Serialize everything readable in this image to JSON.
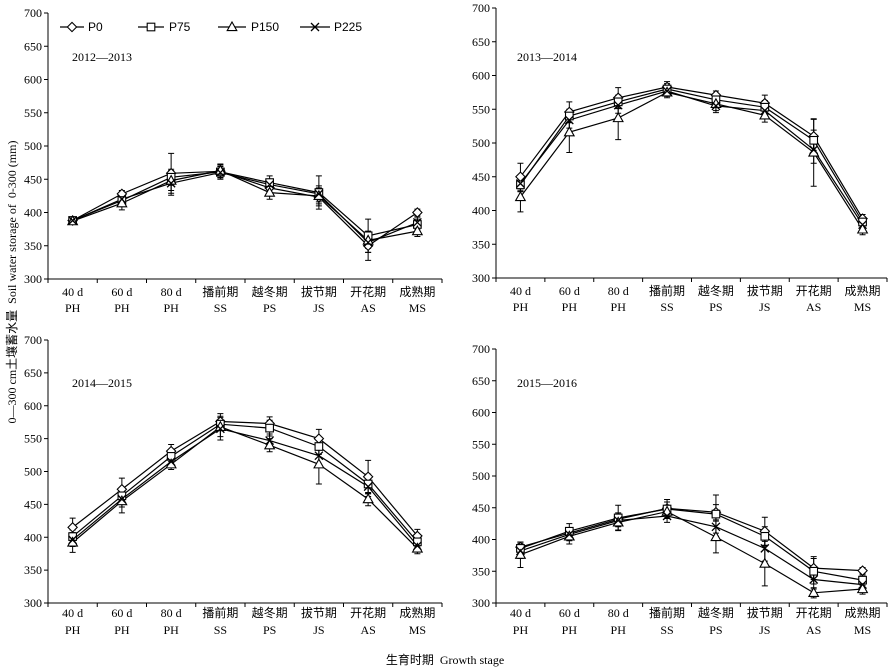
{
  "figure": {
    "ylabel": "0—300 cm土壤蓄水量  Soil water storage of  0-300 (mm)",
    "xlabel": "生育时期  Growth stage"
  },
  "chart_data": [
    {
      "type": "line",
      "title": "2012—2013",
      "ylim": [
        300,
        700
      ],
      "yticks": [
        300,
        350,
        400,
        450,
        500,
        550,
        600,
        650,
        700
      ],
      "grid": false,
      "legend_position": "top",
      "categories": [
        {
          "stage": "40 d",
          "code": "PH"
        },
        {
          "stage": "60 d",
          "code": "PH"
        },
        {
          "stage": "80 d",
          "code": "PH"
        },
        {
          "stage": "播前期",
          "code": "SS"
        },
        {
          "stage": "越冬期",
          "code": "PS"
        },
        {
          "stage": "拔节期",
          "code": "JS"
        },
        {
          "stage": "开花期",
          "code": "AS"
        },
        {
          "stage": "成熟期",
          "code": "MS"
        }
      ],
      "series": [
        {
          "name": "P0",
          "marker": "diamond",
          "values": [
            388,
            428,
            459,
            462,
            437,
            423,
            350,
            400
          ],
          "err": [
            3,
            5,
            30,
            10,
            12,
            13,
            22,
            5
          ]
        },
        {
          "name": "P75",
          "marker": "square",
          "values": [
            388,
            418,
            453,
            461,
            445,
            430,
            365,
            382
          ],
          "err": [
            3,
            8,
            12,
            8,
            10,
            25,
            25,
            8
          ]
        },
        {
          "name": "P150",
          "marker": "triangle",
          "values": [
            387,
            414,
            448,
            463,
            430,
            425,
            358,
            372
          ],
          "err": [
            3,
            10,
            15,
            10,
            10,
            12,
            12,
            8
          ]
        },
        {
          "name": "P225",
          "marker": "x",
          "values": [
            388,
            420,
            444,
            460,
            442,
            428,
            355,
            385
          ],
          "err": [
            3,
            8,
            18,
            10,
            8,
            12,
            15,
            8
          ]
        }
      ]
    },
    {
      "type": "line",
      "title": "2013—2014",
      "ylim": [
        300,
        700
      ],
      "yticks": [
        300,
        350,
        400,
        450,
        500,
        550,
        600,
        650,
        700
      ],
      "grid": false,
      "categories": [
        {
          "stage": "40 d",
          "code": "PH"
        },
        {
          "stage": "60 d",
          "code": "PH"
        },
        {
          "stage": "80 d",
          "code": "PH"
        },
        {
          "stage": "播前期",
          "code": "SS"
        },
        {
          "stage": "越冬期",
          "code": "PS"
        },
        {
          "stage": "拔节期",
          "code": "JS"
        },
        {
          "stage": "开花期",
          "code": "AS"
        },
        {
          "stage": "成熟期",
          "code": "MS"
        }
      ],
      "series": [
        {
          "name": "P0",
          "marker": "diamond",
          "values": [
            450,
            546,
            567,
            583,
            571,
            559,
            510,
            388
          ],
          "err": [
            20,
            15,
            15,
            8,
            6,
            12,
            25,
            6
          ]
        },
        {
          "name": "P75",
          "marker": "square",
          "values": [
            438,
            540,
            561,
            580,
            564,
            553,
            504,
            383
          ],
          "err": [
            10,
            10,
            10,
            8,
            8,
            10,
            15,
            6
          ]
        },
        {
          "name": "P150",
          "marker": "triangle",
          "values": [
            420,
            516,
            537,
            575,
            558,
            541,
            486,
            372
          ],
          "err": [
            22,
            30,
            32,
            8,
            10,
            10,
            50,
            8
          ]
        },
        {
          "name": "P225",
          "marker": "x",
          "values": [
            440,
            534,
            556,
            577,
            555,
            548,
            490,
            379
          ],
          "err": [
            12,
            12,
            12,
            8,
            10,
            10,
            20,
            6
          ]
        }
      ]
    },
    {
      "type": "line",
      "title": "2014—2015",
      "ylim": [
        300,
        700
      ],
      "yticks": [
        300,
        350,
        400,
        450,
        500,
        550,
        600,
        650,
        700
      ],
      "grid": false,
      "categories": [
        {
          "stage": "40 d",
          "code": "PH"
        },
        {
          "stage": "60 d",
          "code": "PH"
        },
        {
          "stage": "80 d",
          "code": "PH"
        },
        {
          "stage": "播前期",
          "code": "SS"
        },
        {
          "stage": "越冬期",
          "code": "PS"
        },
        {
          "stage": "拔节期",
          "code": "JS"
        },
        {
          "stage": "开花期",
          "code": "AS"
        },
        {
          "stage": "成熟期",
          "code": "MS"
        }
      ],
      "series": [
        {
          "name": "P0",
          "marker": "diamond",
          "values": [
            415,
            473,
            531,
            576,
            573,
            550,
            492,
            402
          ],
          "err": [
            14,
            17,
            10,
            8,
            10,
            14,
            25,
            10
          ]
        },
        {
          "name": "P75",
          "marker": "square",
          "values": [
            401,
            463,
            523,
            572,
            566,
            538,
            481,
            393
          ],
          "err": [
            10,
            12,
            8,
            10,
            12,
            12,
            15,
            8
          ]
        },
        {
          "name": "P150",
          "marker": "triangle",
          "values": [
            392,
            455,
            511,
            568,
            540,
            511,
            458,
            383
          ],
          "err": [
            15,
            18,
            8,
            20,
            10,
            30,
            10,
            8
          ]
        },
        {
          "name": "P225",
          "marker": "x",
          "values": [
            396,
            458,
            515,
            565,
            547,
            524,
            477,
            387
          ],
          "err": [
            10,
            12,
            8,
            12,
            10,
            15,
            15,
            8
          ]
        }
      ]
    },
    {
      "type": "line",
      "title": "2015—2016",
      "ylim": [
        300,
        700
      ],
      "yticks": [
        300,
        350,
        400,
        450,
        500,
        550,
        600,
        650,
        700
      ],
      "grid": false,
      "categories": [
        {
          "stage": "40 d",
          "code": "PH"
        },
        {
          "stage": "60 d",
          "code": "PH"
        },
        {
          "stage": "80 d",
          "code": "PH"
        },
        {
          "stage": "播前期",
          "code": "SS"
        },
        {
          "stage": "越冬期",
          "code": "PS"
        },
        {
          "stage": "拔节期",
          "code": "JS"
        },
        {
          "stage": "开花期",
          "code": "AS"
        },
        {
          "stage": "成熟期",
          "code": "MS"
        }
      ],
      "series": [
        {
          "name": "P0",
          "marker": "diamond",
          "values": [
            388,
            410,
            432,
            449,
            443,
            413,
            355,
            351
          ],
          "err": [
            8,
            8,
            10,
            10,
            12,
            22,
            18,
            5
          ]
        },
        {
          "name": "P75",
          "marker": "square",
          "values": [
            386,
            413,
            434,
            448,
            440,
            405,
            350,
            336
          ],
          "err": [
            10,
            12,
            20,
            15,
            30,
            15,
            20,
            8
          ]
        },
        {
          "name": "P150",
          "marker": "triangle",
          "values": [
            376,
            405,
            427,
            444,
            404,
            362,
            316,
            322
          ],
          "err": [
            20,
            12,
            12,
            10,
            25,
            35,
            8,
            8
          ]
        },
        {
          "name": "P225",
          "marker": "x",
          "values": [
            382,
            408,
            430,
            437,
            420,
            386,
            337,
            329
          ],
          "err": [
            12,
            10,
            10,
            10,
            15,
            20,
            15,
            8
          ]
        }
      ]
    }
  ]
}
